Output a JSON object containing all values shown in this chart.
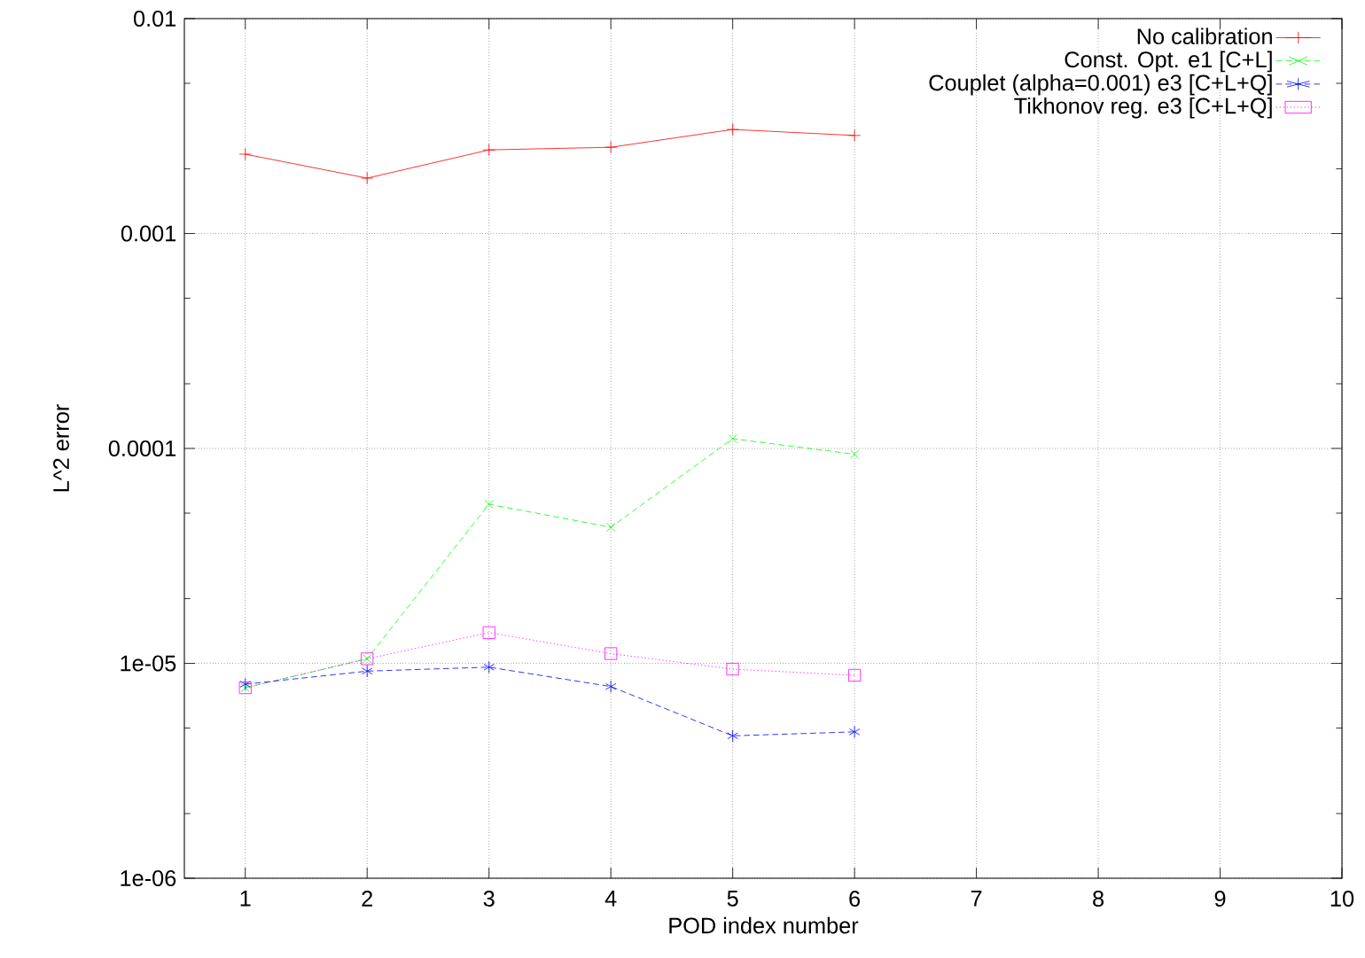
{
  "chart_data": {
    "type": "line",
    "xlabel": "POD index number",
    "ylabel": "L^2 error",
    "log": "y",
    "grid": true,
    "legend": "top right",
    "x": [
      1,
      2,
      3,
      4,
      5,
      6
    ],
    "xlim": [
      0.5,
      10
    ],
    "xticks": [
      1,
      2,
      3,
      4,
      5,
      6,
      7,
      8,
      9,
      10
    ],
    "ylim": [
      1e-06,
      0.01
    ],
    "yticks": [
      {
        "value": 0.01,
        "label": "0.01"
      },
      {
        "value": 0.001,
        "label": "0.001"
      },
      {
        "value": 0.0001,
        "label": "0.0001"
      },
      {
        "value": 1e-05,
        "label": "1e-05"
      },
      {
        "value": 1e-06,
        "label": "1e-06"
      },
      {
        "value": 0.005,
        "label": null
      },
      {
        "value": 0.002,
        "label": null
      },
      {
        "value": 0.0005,
        "label": null
      },
      {
        "value": 0.0002,
        "label": null
      },
      {
        "value": 5e-05,
        "label": null
      },
      {
        "value": 2e-05,
        "label": null
      },
      {
        "value": 5e-06,
        "label": null
      },
      {
        "value": 2e-06,
        "label": null
      }
    ],
    "series": [
      {
        "name": "No calibration",
        "color": "#ff0000",
        "marker": "cross",
        "line_style": "solid",
        "values": [
          0.00234,
          0.00181,
          0.00245,
          0.00252,
          0.00305,
          0.00286
        ]
      },
      {
        "name": "Const. Opt. e1 [C+L]",
        "color": "#00ff00",
        "marker": "cross",
        "line_style": "dashed",
        "values": [
          7.7e-06,
          1.05e-05,
          5.5e-05,
          4.3e-05,
          0.000111,
          9.4e-05
        ]
      },
      {
        "name": "Couplet (alpha=0.001) e3 [C+L+Q]",
        "color": "#0000ff",
        "marker": "cross",
        "line_style": "dashed",
        "values": [
          8e-06,
          9.2e-06,
          9.6e-06,
          7.8e-06,
          4.6e-06,
          4.8e-06
        ]
      },
      {
        "name": "Tikhonov reg. e3 [C+L+Q]",
        "color": "#ff00ff",
        "marker": "square",
        "line_style": "dotted",
        "values": [
          7.7e-06,
          1.05e-05,
          1.39e-05,
          1.11e-05,
          9.4e-06,
          8.8e-06
        ]
      }
    ]
  }
}
